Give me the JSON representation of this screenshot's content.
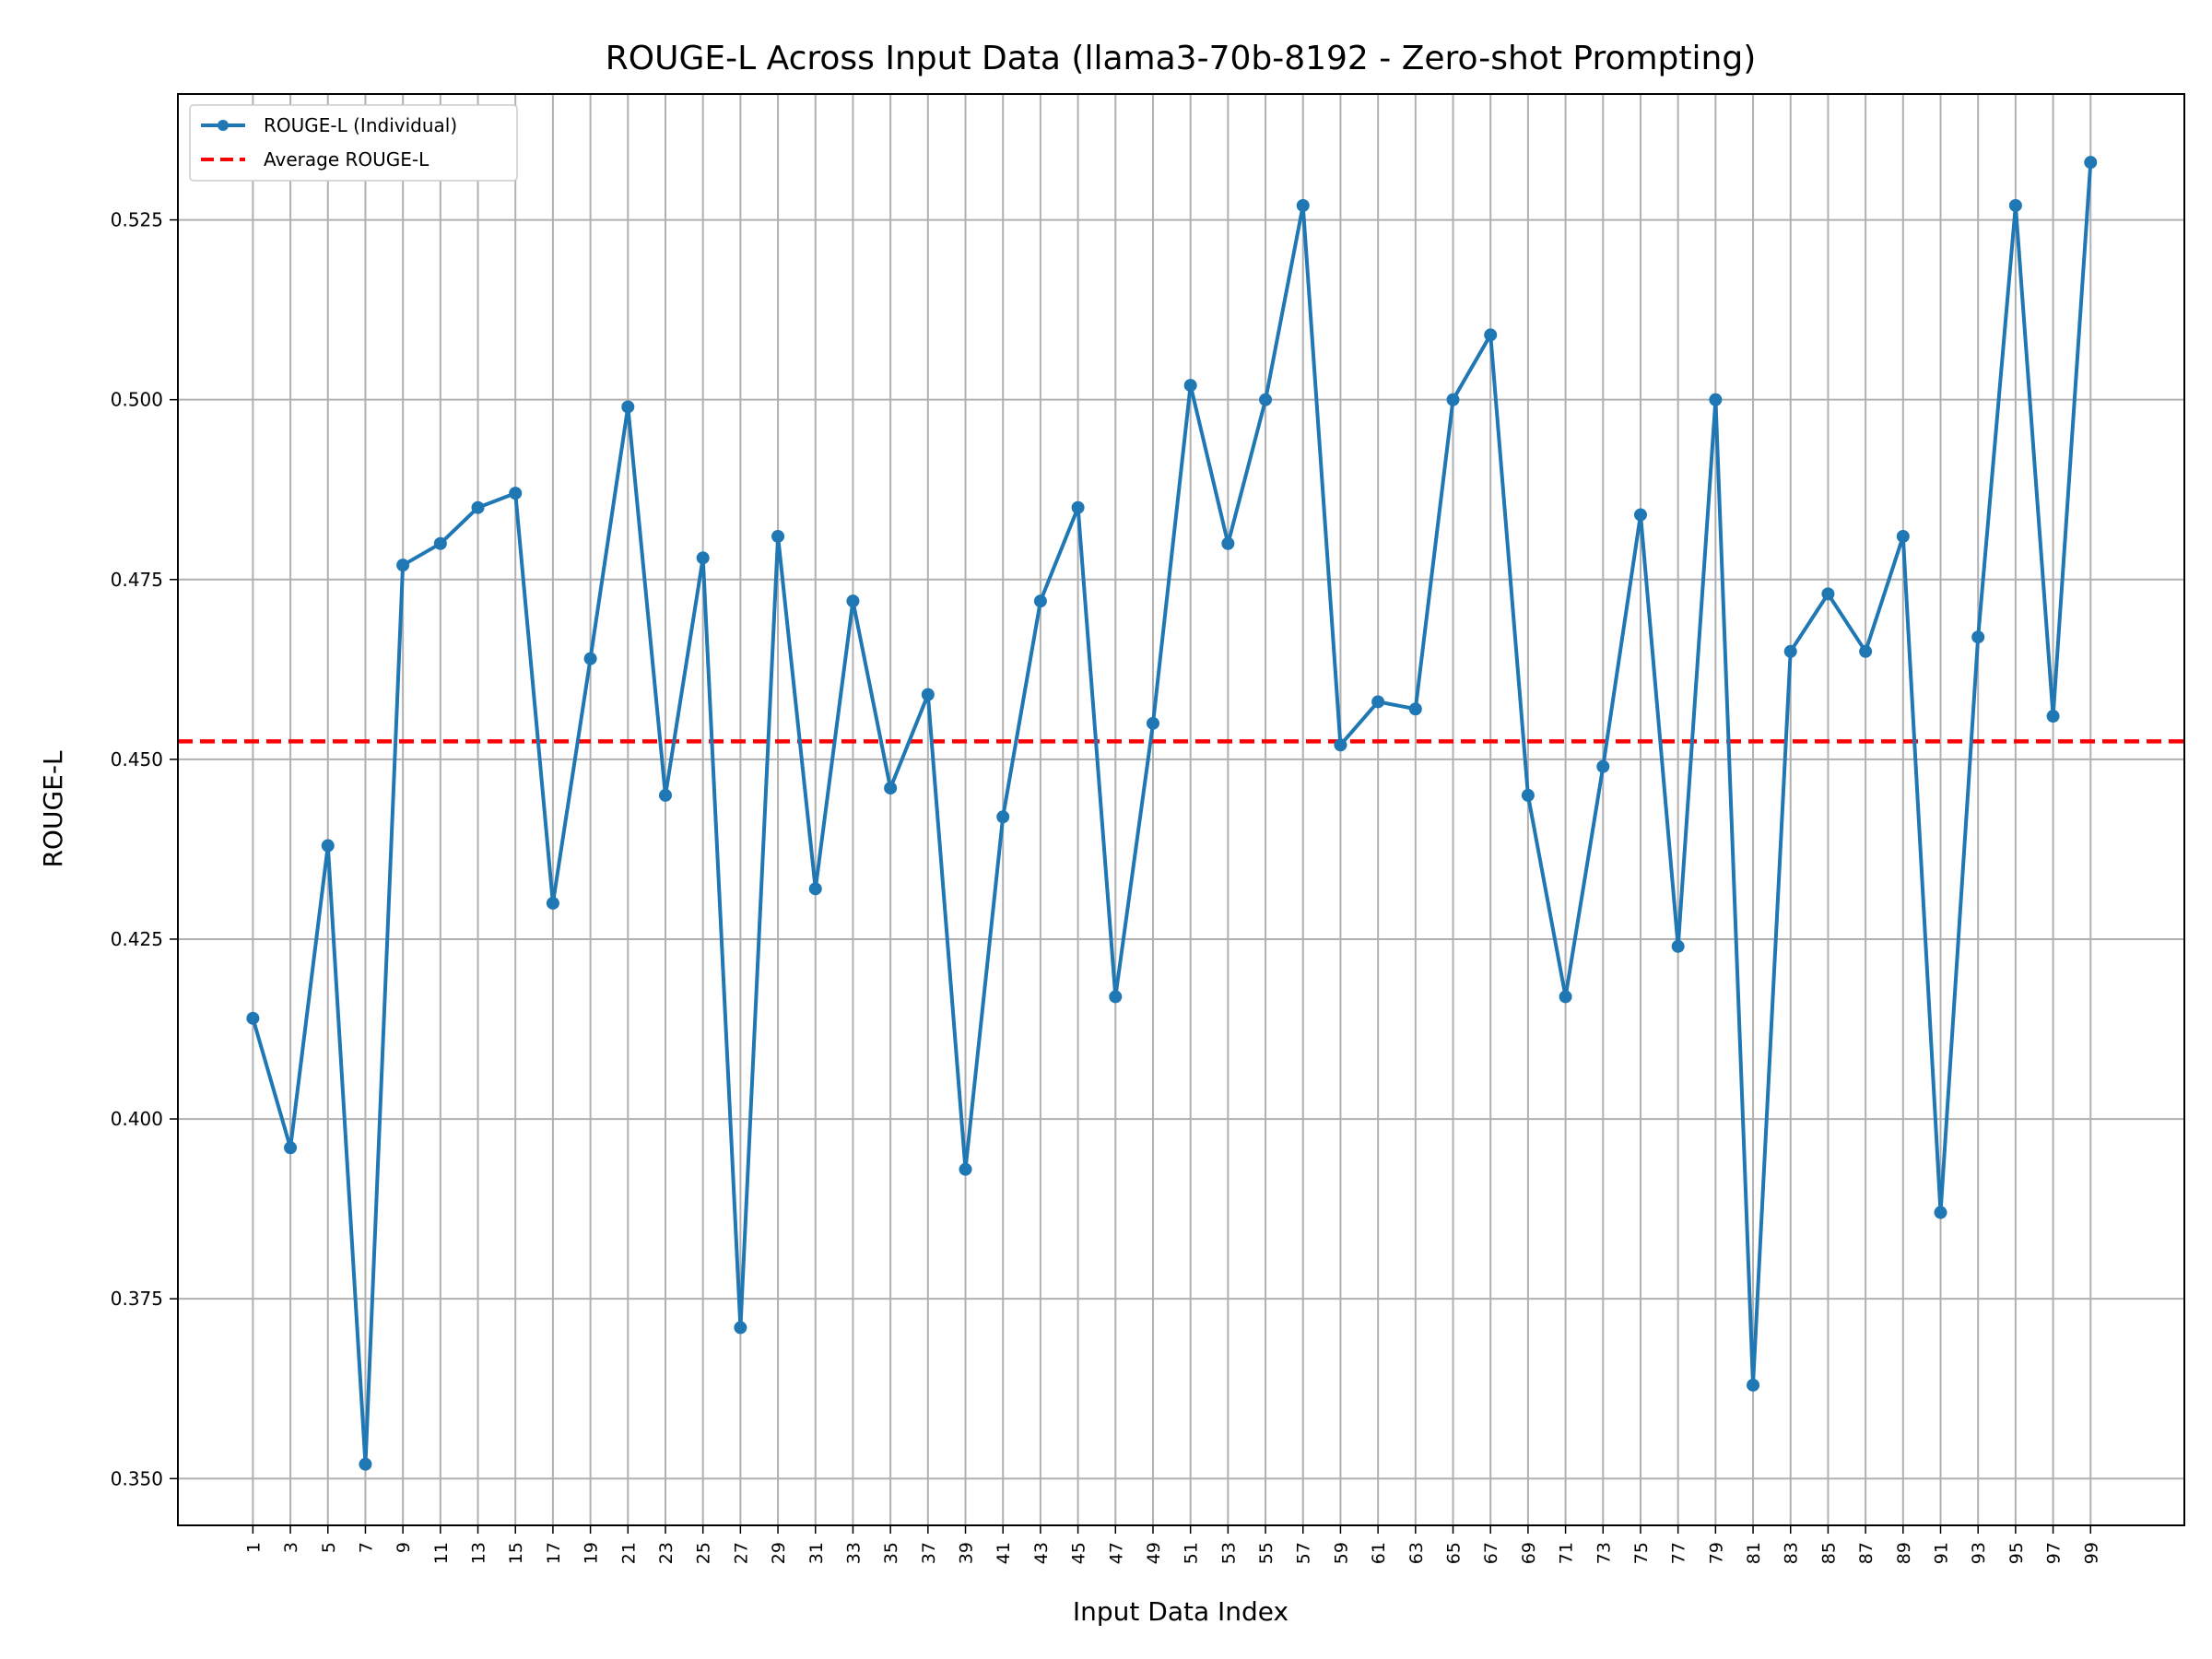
{
  "chart_data": {
    "type": "line",
    "title": "ROUGE-L Across Input Data (llama3-70b-8192 - Zero-shot Prompting)",
    "xlabel": "Input Data Index",
    "ylabel": "ROUGE-L",
    "xlim": [
      -3,
      104
    ],
    "ylim": [
      0.3435,
      0.5425
    ],
    "x_ticks": [
      1,
      3,
      5,
      7,
      9,
      11,
      13,
      15,
      17,
      19,
      21,
      23,
      25,
      27,
      29,
      31,
      33,
      35,
      37,
      39,
      41,
      43,
      45,
      47,
      49,
      51,
      53,
      55,
      57,
      59,
      61,
      63,
      65,
      67,
      69,
      71,
      73,
      75,
      77,
      79,
      81,
      83,
      85,
      87,
      89,
      91,
      93,
      95,
      97,
      99
    ],
    "y_ticks": [
      0.35,
      0.375,
      0.4,
      0.425,
      0.45,
      0.475,
      0.5,
      0.525
    ],
    "y_tick_labels": [
      "0.350",
      "0.375",
      "0.400",
      "0.425",
      "0.450",
      "0.475",
      "0.500",
      "0.525"
    ],
    "grid": true,
    "legend_position": "top-left",
    "series": [
      {
        "name": "ROUGE-L (Individual)",
        "color": "#1f77b4",
        "style": "solid-with-markers",
        "x": [
          1,
          3,
          5,
          7,
          9,
          11,
          13,
          15,
          17,
          19,
          21,
          23,
          25,
          27,
          29,
          31,
          33,
          35,
          37,
          39,
          41,
          43,
          45,
          47,
          49,
          51,
          53,
          55,
          57,
          59,
          61,
          63,
          65,
          67,
          69,
          71,
          73,
          75,
          77,
          79,
          81,
          83,
          85,
          87,
          89,
          91,
          93,
          95,
          97,
          99
        ],
        "y": [
          0.414,
          0.396,
          0.438,
          0.352,
          0.477,
          0.48,
          0.485,
          0.487,
          0.43,
          0.464,
          0.499,
          0.445,
          0.478,
          0.371,
          0.481,
          0.432,
          0.472,
          0.446,
          0.459,
          0.393,
          0.442,
          0.472,
          0.485,
          0.417,
          0.455,
          0.502,
          0.48,
          0.5,
          0.527,
          0.452,
          0.458,
          0.457,
          0.5,
          0.509,
          0.445,
          0.417,
          0.449,
          0.484,
          0.424,
          0.5,
          0.363,
          0.465,
          0.473,
          0.465,
          0.481,
          0.387,
          0.467,
          0.527,
          0.456,
          0.533
        ]
      },
      {
        "name": "Average ROUGE-L",
        "color": "#ff0000",
        "style": "dashed",
        "y_value": 0.4525
      }
    ]
  }
}
